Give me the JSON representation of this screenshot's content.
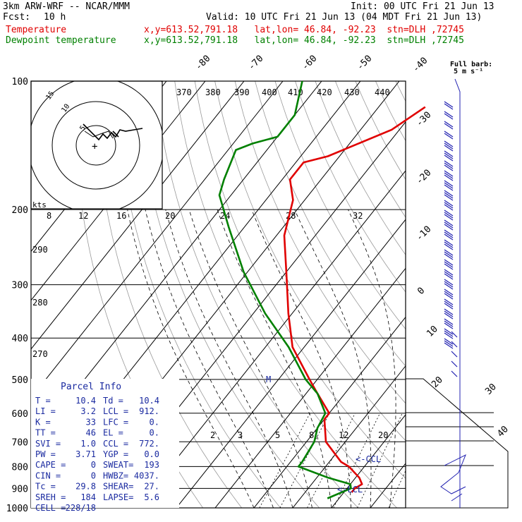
{
  "header": {
    "model": "3km ARW-WRF -- NCAR/MMM",
    "init": "Init: 00 UTC Fri 21 Jun 13",
    "fcst_label": "Fcst:",
    "fcst_value": "10 h",
    "valid": "Valid: 10 UTC Fri 21 Jun 13 (04 MDT Fri 21 Jun 13)",
    "temperature_label": "Temperature",
    "temperature_info": "x,y=613.52,791.18   lat,lon= 46.84, -92.23  stn=DLH ,72745",
    "dewpoint_label": "Dewpoint temperature",
    "dewpoint_info": "x,y=613.52,791.18   lat,lon= 46.84, -92.23  stn=DLH ,72745"
  },
  "colors": {
    "temperature": "#e00000",
    "dewpoint": "#008000",
    "wind": "#2020b0",
    "parcel_info": "#1a2aa0"
  },
  "wind_legend": {
    "title": "Full barb:",
    "value": "5 m s⁻¹"
  },
  "hodograph": {
    "units": "kts",
    "speed_labels": [
      "8",
      "12",
      "16",
      "20",
      "24",
      "28",
      "32"
    ],
    "ring_labels": [
      "5",
      "10",
      "15"
    ]
  },
  "parcel_info": {
    "title": "Parcel Info",
    "rows": [
      [
        "T   =",
        "10.4",
        "Td =",
        "10.4"
      ],
      [
        "LI  =",
        "3.2",
        "LCL =",
        "912."
      ],
      [
        "K   =",
        "33",
        "LFC =",
        "0."
      ],
      [
        "TT  =",
        "46",
        "EL  =",
        "0."
      ],
      [
        "SVI =",
        "1.0",
        "CCL =",
        "772."
      ],
      [
        "PW  =",
        "3.71",
        "YGP =",
        "0.0"
      ],
      [
        "CAPE =",
        "0",
        "SWEAT=",
        "193"
      ],
      [
        "CIN  =",
        "0",
        "HWBZ=",
        "4037."
      ],
      [
        "Tc  =",
        "29.8",
        "SHEAR=",
        "27."
      ],
      [
        "SREH =",
        "184",
        "LAPSE=",
        "5.6"
      ],
      [
        "CELL =",
        "228/18",
        "",
        ""
      ]
    ]
  },
  "annotations": {
    "ccl": "<-CCL",
    "lcl": "<-LCL",
    "parcel_marker": "M"
  },
  "chart_data": {
    "type": "line",
    "diagram": "skew-T log-P",
    "y_axis": {
      "ticks": [
        "100",
        "200",
        "300",
        "400",
        "500",
        "600",
        "700",
        "800",
        "900",
        "1000"
      ],
      "ylim": [
        1000,
        100
      ],
      "scale": "log"
    },
    "isotherm_labels": [
      "-80",
      "-70",
      "-60",
      "-50",
      "-40",
      "-30",
      "-20",
      "-10",
      "0",
      "10",
      "20",
      "30",
      "40"
    ],
    "theta_labels": [
      "370",
      "380",
      "390",
      "400",
      "410",
      "420",
      "430",
      "440"
    ],
    "theta_side_labels": [
      "290",
      "280",
      "270"
    ],
    "mixing_ratio_labels": [
      "2",
      "3",
      "5",
      "8",
      "12",
      "20"
    ],
    "series": [
      {
        "name": "Temperature",
        "points": [
          [
            115,
            -48
          ],
          [
            130,
            -52
          ],
          [
            150,
            -63
          ],
          [
            155,
            -68
          ],
          [
            170,
            -68
          ],
          [
            190,
            -63
          ],
          [
            230,
            -58
          ],
          [
            280,
            -50
          ],
          [
            350,
            -41
          ],
          [
            420,
            -33
          ],
          [
            500,
            -22
          ],
          [
            540,
            -17
          ],
          [
            600,
            -10
          ],
          [
            620,
            -10
          ],
          [
            700,
            -5
          ],
          [
            780,
            3
          ],
          [
            800,
            6
          ],
          [
            850,
            11
          ],
          [
            880,
            13
          ],
          [
            900,
            12
          ],
          [
            920,
            12
          ]
        ]
      },
      {
        "name": "Dewpoint temperature",
        "points": [
          [
            100,
            -85
          ],
          [
            120,
            -80
          ],
          [
            135,
            -80
          ],
          [
            140,
            -85
          ],
          [
            145,
            -88
          ],
          [
            170,
            -85
          ],
          [
            185,
            -83
          ],
          [
            220,
            -74
          ],
          [
            280,
            -61
          ],
          [
            350,
            -47
          ],
          [
            420,
            -34
          ],
          [
            500,
            -23
          ],
          [
            540,
            -17
          ],
          [
            600,
            -11
          ],
          [
            650,
            -10
          ],
          [
            700,
            -8
          ],
          [
            780,
            -7
          ],
          [
            800,
            -7
          ],
          [
            850,
            3
          ],
          [
            880,
            10
          ],
          [
            900,
            11
          ],
          [
            950,
            7
          ]
        ]
      }
    ]
  }
}
